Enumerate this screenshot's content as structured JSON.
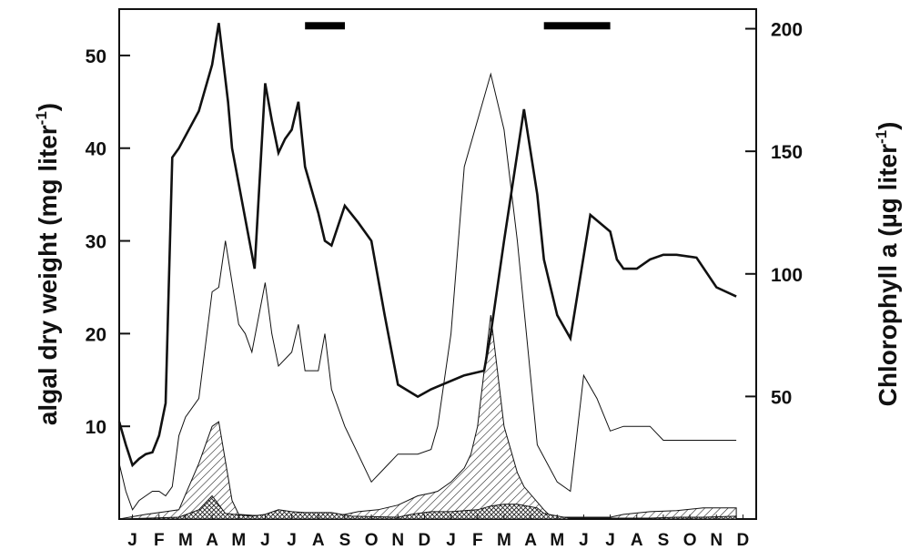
{
  "chart_data": {
    "type": "area",
    "title": "",
    "ylabel": "algal dry weight (mg liter-1)",
    "ylabel_parts": [
      "algal dry weight (mg liter",
      "-1",
      ")"
    ],
    "y2label": "Chlorophyll a (µg liter-1)",
    "y2label_parts": [
      "Chlorophyll a (µg liter",
      "-1",
      ")"
    ],
    "xlabel": "",
    "x_tick_labels": [
      "J",
      "F",
      "M",
      "A",
      "M",
      "J",
      "J",
      "A",
      "S",
      "O",
      "N",
      "D",
      "J",
      "F",
      "M",
      "A",
      "M",
      "J",
      "J",
      "A",
      "S",
      "O",
      "N",
      "D"
    ],
    "x_range": [
      0,
      24
    ],
    "ylim": [
      0,
      55
    ],
    "y_ticks": [
      10,
      20,
      30,
      40,
      50
    ],
    "y2lim": [
      0,
      208
    ],
    "y2_ticks": [
      50,
      100,
      150,
      200
    ],
    "grid": false,
    "legend": "none",
    "bars": [
      {
        "x_start": 7.0,
        "x_end": 8.5,
        "y": 53.2
      },
      {
        "x_start": 16.0,
        "x_end": 18.5,
        "y": 53.2
      }
    ],
    "series": [
      {
        "style": "thick-line",
        "axis": "left",
        "x": [
          0.0,
          0.25,
          0.5,
          0.75,
          1.0,
          1.25,
          1.5,
          1.75,
          2.0,
          2.25,
          3.0,
          3.5,
          3.75,
          4.1,
          4.25,
          5.1,
          5.5,
          5.75,
          6.0,
          6.25,
          6.5,
          6.75,
          7.0,
          7.5,
          7.75,
          8.0,
          8.5,
          9.0,
          9.5,
          10.0,
          10.5,
          11.25,
          11.75,
          12.0,
          13.0,
          13.75,
          14.0,
          14.5,
          15.25,
          15.75,
          16.0,
          16.25,
          16.5,
          17.0,
          17.75,
          18.5,
          18.75,
          19.0,
          19.5,
          20.0,
          20.5,
          21.0,
          21.75,
          22.5,
          23.25
        ],
        "y": [
          10.5,
          8.0,
          5.8,
          6.5,
          7.0,
          7.2,
          9.0,
          12.5,
          39.0,
          40.0,
          44.0,
          49.0,
          53.5,
          45.0,
          40.0,
          27.0,
          47.0,
          43.0,
          39.5,
          41.0,
          42.0,
          45.0,
          38.0,
          33.0,
          30.0,
          29.5,
          33.8,
          32.0,
          30.0,
          22.0,
          14.5,
          13.2,
          14.0,
          14.3,
          15.5,
          16.0,
          20.0,
          30.0,
          44.2,
          35.0,
          28.0,
          25.0,
          22.0,
          19.5,
          32.8,
          31.0,
          28.0,
          27.0,
          27.0,
          28.0,
          28.5,
          28.5,
          28.2,
          25.0,
          24.0
        ]
      },
      {
        "style": "thin-line",
        "axis": "left",
        "x": [
          0.0,
          0.25,
          0.5,
          0.75,
          1.0,
          1.25,
          1.5,
          1.75,
          2.0,
          2.25,
          2.5,
          3.0,
          3.5,
          3.75,
          4.0,
          4.5,
          4.75,
          5.0,
          5.5,
          5.75,
          6.0,
          6.5,
          6.75,
          7.0,
          7.5,
          7.75,
          8.0,
          8.5,
          9.0,
          9.5,
          10.0,
          10.5,
          11.25,
          11.75,
          12.0,
          12.5,
          13.0,
          14.0,
          14.5,
          15.0,
          15.75,
          16.5,
          17.0,
          17.5,
          18.0,
          18.5,
          19.0,
          19.5,
          20.0,
          20.5,
          21.0,
          21.75,
          22.5,
          23.25
        ],
        "y": [
          6.0,
          3.0,
          1.0,
          2.0,
          2.5,
          3.0,
          3.0,
          2.5,
          3.5,
          9.0,
          11.0,
          13.0,
          24.5,
          25.0,
          30.0,
          21.0,
          20.0,
          18.0,
          25.5,
          20.0,
          16.5,
          18.0,
          21.0,
          16.0,
          16.0,
          20.0,
          14.0,
          10.0,
          7.0,
          4.0,
          5.5,
          7.0,
          7.0,
          7.5,
          10.0,
          20.0,
          38.0,
          48.0,
          42.0,
          30.0,
          8.0,
          4.0,
          3.0,
          15.5,
          13.0,
          9.5,
          10.0,
          10.0,
          10.0,
          8.5,
          8.5,
          8.5,
          8.5,
          8.5
        ]
      },
      {
        "style": "hatched-area",
        "axis": "left",
        "x": [
          0.0,
          1.0,
          1.75,
          2.25,
          3.0,
          3.5,
          3.75,
          4.25,
          4.5,
          5.0,
          6.0,
          6.5,
          7.0,
          7.75,
          8.0,
          8.5,
          9.0,
          9.75,
          10.5,
          11.25,
          11.75,
          12.0,
          12.5,
          13.0,
          13.25,
          13.5,
          14.0,
          14.5,
          15.0,
          15.25,
          16.0,
          16.25,
          16.5,
          17.0,
          18.0,
          18.5,
          19.0,
          20.0,
          21.0,
          22.0,
          23.25
        ],
        "y": [
          0.0,
          0.5,
          0.8,
          1.0,
          6.0,
          10.0,
          10.5,
          2.0,
          0.5,
          0.4,
          0.3,
          0.8,
          0.5,
          0.3,
          0.4,
          0.5,
          0.8,
          1.0,
          1.5,
          2.5,
          2.8,
          3.0,
          4.0,
          5.5,
          7.0,
          10.0,
          22.0,
          10.0,
          5.0,
          3.5,
          1.0,
          0.3,
          0.2,
          0.2,
          0.2,
          0.2,
          0.5,
          0.8,
          0.9,
          1.2,
          1.2
        ]
      },
      {
        "style": "cross-hatched-area",
        "axis": "left",
        "x": [
          0.0,
          2.25,
          3.0,
          3.5,
          4.0,
          5.0,
          5.5,
          6.0,
          6.5,
          7.0,
          8.0,
          8.75,
          10.5,
          11.0,
          11.75,
          12.0,
          12.5,
          13.0,
          13.5,
          14.0,
          14.5,
          15.0,
          15.75,
          16.0,
          16.75,
          17.0,
          17.5,
          18.0,
          18.5,
          19.0,
          20.0,
          21.0,
          22.0,
          23.25
        ],
        "y": [
          0.0,
          0.2,
          1.0,
          2.5,
          0.6,
          0.3,
          0.5,
          1.0,
          0.8,
          0.7,
          0.7,
          0.3,
          0.2,
          0.5,
          0.8,
          0.8,
          0.8,
          0.9,
          1.0,
          1.4,
          1.6,
          1.6,
          1.2,
          0.6,
          0.2,
          0.1,
          0.1,
          0.1,
          0.1,
          0.1,
          0.1,
          0.2,
          0.2,
          0.3
        ]
      }
    ]
  }
}
